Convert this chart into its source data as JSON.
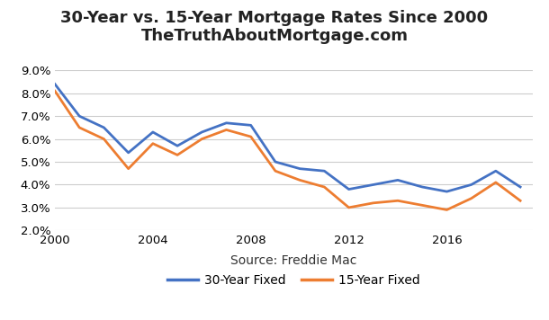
{
  "title_line1": "30-Year vs. 15-Year Mortgage Rates Since 2000",
  "title_line2": "TheTruthAboutMortgage.com",
  "xlabel": "Source: Freddie Mac",
  "years_30": [
    2000,
    2001,
    2002,
    2003,
    2004,
    2005,
    2006,
    2007,
    2008,
    2009,
    2010,
    2011,
    2012,
    2013,
    2014,
    2015,
    2016,
    2017,
    2018,
    2019
  ],
  "rates_30": [
    0.084,
    0.07,
    0.065,
    0.054,
    0.063,
    0.057,
    0.063,
    0.067,
    0.066,
    0.05,
    0.047,
    0.046,
    0.038,
    0.04,
    0.042,
    0.039,
    0.037,
    0.04,
    0.046,
    0.039
  ],
  "years_15": [
    2000,
    2001,
    2002,
    2003,
    2004,
    2005,
    2006,
    2007,
    2008,
    2009,
    2010,
    2011,
    2012,
    2013,
    2014,
    2015,
    2016,
    2017,
    2018,
    2019
  ],
  "rates_15": [
    0.081,
    0.065,
    0.06,
    0.047,
    0.058,
    0.053,
    0.06,
    0.064,
    0.061,
    0.046,
    0.042,
    0.039,
    0.03,
    0.032,
    0.033,
    0.031,
    0.029,
    0.034,
    0.041,
    0.033
  ],
  "color_30": "#4472C4",
  "color_15": "#ED7D31",
  "ylim": [
    0.02,
    0.09
  ],
  "yticks": [
    0.02,
    0.03,
    0.04,
    0.05,
    0.06,
    0.07,
    0.08,
    0.09
  ],
  "xticks": [
    2000,
    2004,
    2008,
    2012,
    2016
  ],
  "bg_color": "#ffffff",
  "grid_color": "#cccccc",
  "legend_30": "30-Year Fixed",
  "legend_15": "15-Year Fixed",
  "line_width": 2.0,
  "title_fontsize": 13,
  "subtitle_fontsize": 13,
  "label_fontsize": 10,
  "tick_fontsize": 9.5,
  "legend_fontsize": 10
}
